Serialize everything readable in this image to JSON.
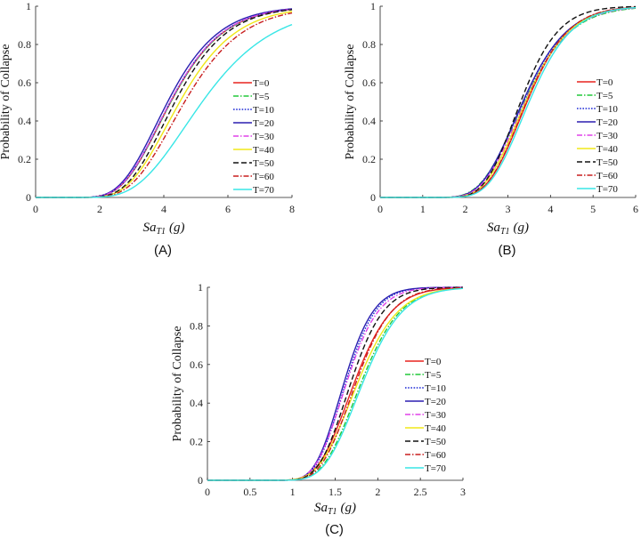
{
  "figure": {
    "panel_labels": [
      "(A)",
      "(B)",
      "(C)"
    ]
  },
  "colors": {
    "T=0": "#e8231f",
    "T=5": "#22c83a",
    "T=10": "#1f2bd6",
    "T=20": "#2b1fb0",
    "T=30": "#e040e8",
    "T=40": "#f0e818",
    "T=50": "#111111",
    "T=60": "#c81e1e",
    "T=70": "#38e6e6"
  },
  "chart_data": [
    {
      "type": "line",
      "panel": "(A)",
      "xlabel": "Sa_T1 (g)",
      "xlabel_main": "Sa",
      "xlabel_sub": "T1",
      "xlabel_unit": "(g)",
      "ylabel": "Probability of Collapse",
      "xlim": [
        0,
        8
      ],
      "ylim": [
        0,
        1
      ],
      "xticks": [
        0,
        2,
        4,
        6,
        8
      ],
      "yticks": [
        0,
        0.2,
        0.4,
        0.6,
        0.8,
        1
      ],
      "legend_placement": "right",
      "series": [
        {
          "name": "T=0",
          "style": "solid",
          "median": 4.22,
          "beta": 0.3
        },
        {
          "name": "T=5",
          "style": "dashdot",
          "median": 4.22,
          "beta": 0.3
        },
        {
          "name": "T=10",
          "style": "dotted",
          "median": 4.2,
          "beta": 0.3
        },
        {
          "name": "T=20",
          "style": "solid",
          "median": 4.12,
          "beta": 0.3
        },
        {
          "name": "T=30",
          "style": "dashdot",
          "median": 4.2,
          "beta": 0.3
        },
        {
          "name": "T=40",
          "style": "solid",
          "median": 4.5,
          "beta": 0.3
        },
        {
          "name": "T=50",
          "style": "dashed",
          "median": 4.35,
          "beta": 0.29
        },
        {
          "name": "T=60",
          "style": "dashdot",
          "median": 4.65,
          "beta": 0.3
        },
        {
          "name": "T=70",
          "style": "solid",
          "median": 5.2,
          "beta": 0.33
        }
      ]
    },
    {
      "type": "line",
      "panel": "(B)",
      "xlabel": "Sa_T1 (g)",
      "xlabel_main": "Sa",
      "xlabel_sub": "T1",
      "xlabel_unit": "(g)",
      "ylabel": "Probability of Collapse",
      "xlim": [
        0,
        6
      ],
      "ylim": [
        0,
        1
      ],
      "xticks": [
        0,
        1,
        2,
        3,
        4,
        5,
        6
      ],
      "yticks": [
        0,
        0.2,
        0.4,
        0.6,
        0.8,
        1
      ],
      "legend_placement": "right",
      "series": [
        {
          "name": "T=0",
          "style": "solid",
          "median": 3.45,
          "beta": 0.22
        },
        {
          "name": "T=5",
          "style": "dashdot",
          "median": 3.38,
          "beta": 0.25
        },
        {
          "name": "T=10",
          "style": "dotted",
          "median": 3.36,
          "beta": 0.24
        },
        {
          "name": "T=20",
          "style": "solid",
          "median": 3.35,
          "beta": 0.24
        },
        {
          "name": "T=30",
          "style": "dashdot",
          "median": 3.4,
          "beta": 0.24
        },
        {
          "name": "T=40",
          "style": "solid",
          "median": 3.42,
          "beta": 0.23
        },
        {
          "name": "T=50",
          "style": "dashed",
          "median": 3.3,
          "beta": 0.21
        },
        {
          "name": "T=60",
          "style": "dashdot",
          "median": 3.44,
          "beta": 0.22
        },
        {
          "name": "T=70",
          "style": "solid",
          "median": 3.5,
          "beta": 0.22
        }
      ]
    },
    {
      "type": "line",
      "panel": "(C)",
      "xlabel": "Sa_T1 (g)",
      "xlabel_main": "Sa",
      "xlabel_sub": "T1",
      "xlabel_unit": "(g)",
      "ylabel": "Probability of Collapse",
      "xlim": [
        0,
        3
      ],
      "ylim": [
        0,
        1
      ],
      "xticks": [
        0,
        0.5,
        1,
        1.5,
        2,
        2.5,
        3
      ],
      "yticks": [
        0,
        0.2,
        0.4,
        0.6,
        0.8,
        1
      ],
      "legend_placement": "right",
      "series": [
        {
          "name": "T=0",
          "style": "solid",
          "median": 1.72,
          "beta": 0.2
        },
        {
          "name": "T=5",
          "style": "dashdot",
          "median": 1.8,
          "beta": 0.2
        },
        {
          "name": "T=10",
          "style": "dotted",
          "median": 1.62,
          "beta": 0.17
        },
        {
          "name": "T=20",
          "style": "solid",
          "median": 1.6,
          "beta": 0.17
        },
        {
          "name": "T=30",
          "style": "dashdot",
          "median": 1.63,
          "beta": 0.18
        },
        {
          "name": "T=40",
          "style": "solid",
          "median": 1.76,
          "beta": 0.21
        },
        {
          "name": "T=50",
          "style": "dashed",
          "median": 1.68,
          "beta": 0.18
        },
        {
          "name": "T=60",
          "style": "dashdot",
          "median": 1.74,
          "beta": 0.19
        },
        {
          "name": "T=70",
          "style": "solid",
          "median": 1.82,
          "beta": 0.2
        }
      ]
    }
  ]
}
